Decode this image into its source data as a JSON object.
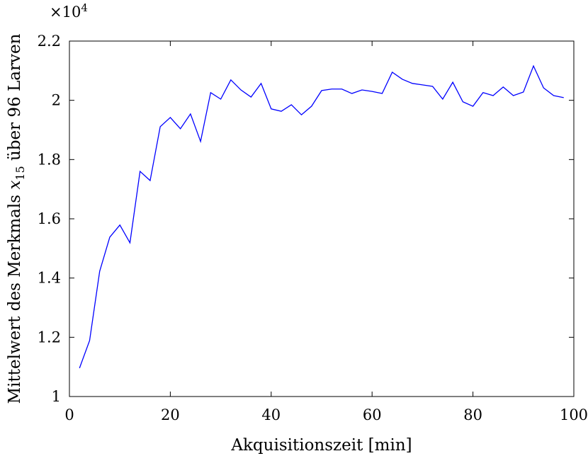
{
  "chart_data": {
    "type": "line",
    "xlabel": "Akquisitionszeit [min]",
    "ylabel": [
      "Mittelwert des Merkmals",
      "x",
      "15",
      "über 96 Larven"
    ],
    "axis_multiplier": "×10",
    "axis_multiplier_exponent": "4",
    "x": [
      2,
      4,
      6,
      8,
      10,
      12,
      14,
      16,
      18,
      20,
      22,
      24,
      26,
      28,
      30,
      32,
      34,
      36,
      38,
      40,
      42,
      44,
      46,
      48,
      50,
      52,
      54,
      56,
      58,
      60,
      62,
      64,
      66,
      68,
      70,
      72,
      74,
      76,
      78,
      80,
      82,
      84,
      86,
      88,
      90,
      92,
      94,
      96,
      98
    ],
    "series": [
      {
        "name": "x15",
        "color": "#0000ff",
        "values": [
          1.096,
          1.189,
          1.423,
          1.538,
          1.579,
          1.519,
          1.76,
          1.729,
          1.911,
          1.942,
          1.904,
          1.954,
          1.861,
          2.026,
          2.004,
          2.069,
          2.035,
          2.011,
          2.057,
          1.971,
          1.963,
          1.985,
          1.951,
          1.98,
          2.033,
          2.038,
          2.038,
          2.023,
          2.035,
          2.03,
          2.023,
          2.095,
          2.071,
          2.057,
          2.052,
          2.047,
          2.004,
          2.061,
          1.995,
          1.98,
          2.026,
          2.016,
          2.045,
          2.016,
          2.028,
          2.116,
          2.042,
          2.016,
          2.009
        ]
      }
    ],
    "xlim": [
      0,
      100
    ],
    "xticks": [
      0,
      20,
      40,
      60,
      80,
      100
    ],
    "ylim": [
      1,
      2.2
    ],
    "yticks": [
      1,
      1.2,
      1.4,
      1.6,
      1.8,
      2,
      2.2
    ],
    "grid": false
  }
}
